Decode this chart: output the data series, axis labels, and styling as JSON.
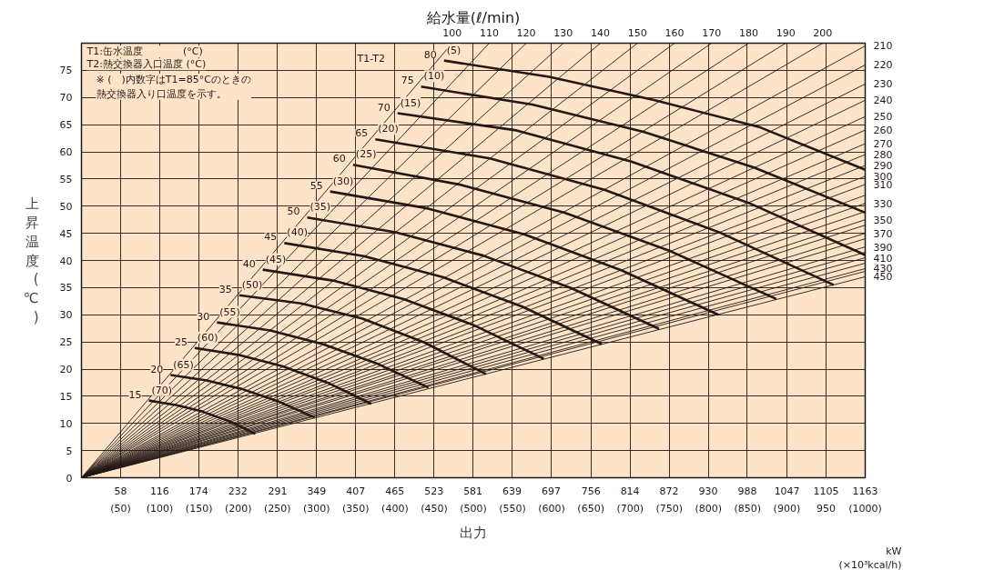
{
  "chart_data": {
    "type": "line",
    "xlabel": "出力",
    "ylabel": "上昇温度(℃)",
    "xlim": [
      0,
      1163
    ],
    "ylim": [
      0,
      80
    ],
    "xticks": [
      58,
      116,
      174,
      232,
      291,
      349,
      407,
      465,
      523,
      581,
      639,
      697,
      756,
      814,
      872,
      930,
      988,
      1047,
      1105,
      1163
    ],
    "x2lim": [
      0,
      1000
    ],
    "x2ticks": [
      {
        "value": 50,
        "label": "(50)"
      },
      {
        "value": 100,
        "label": "(100)"
      },
      {
        "value": 150,
        "label": "(150)"
      },
      {
        "value": 200,
        "label": "(200)"
      },
      {
        "value": 250,
        "label": "(250)"
      },
      {
        "value": 300,
        "label": "(300)"
      },
      {
        "value": 350,
        "label": "(350)"
      },
      {
        "value": 400,
        "label": "(400)"
      },
      {
        "value": 450,
        "label": "(450)"
      },
      {
        "value": 500,
        "label": "(500)"
      },
      {
        "value": 550,
        "label": "(550)"
      },
      {
        "value": 600,
        "label": "(600)"
      },
      {
        "value": 650,
        "label": "(650)"
      },
      {
        "value": 700,
        "label": "(700)"
      },
      {
        "value": 750,
        "label": "(750)"
      },
      {
        "value": 800,
        "label": "(800)"
      },
      {
        "value": 850,
        "label": "(850)"
      },
      {
        "value": 900,
        "label": "(900)"
      },
      950,
      {
        "value": 1000,
        "label": "(1000)"
      }
    ],
    "yticks": [
      0,
      5,
      10,
      15,
      20,
      25,
      30,
      35,
      40,
      45,
      50,
      55,
      60,
      65,
      70,
      75
    ],
    "grid": true,
    "annotations": [
      "T1:缶水温度　　　　(°C)",
      "T2:熱交換器入口温度 (°C)",
      "※ (　)内数字はT1=85°Cのときの熱交換器入り口温度を示す。",
      "給水量(ℓ/min)",
      "kW",
      "(×10³kcal/h)",
      "T1-T2",
      {
        "text": "(70)",
        "x": 100,
        "y": 14.2
      },
      {
        "text": "(65)",
        "x": 132,
        "y": 18.9
      },
      {
        "text": "(60)",
        "x": 168,
        "y": 23.9
      },
      {
        "text": "(55)",
        "x": 201,
        "y": 28.6
      },
      {
        "text": "(50)",
        "x": 234,
        "y": 33.6
      },
      {
        "text": "(45)",
        "x": 269,
        "y": 38.3
      },
      {
        "text": "(40)",
        "x": 301,
        "y": 43.2
      },
      {
        "text": "(35)",
        "x": 335,
        "y": 47.9
      },
      {
        "text": "(30)",
        "x": 369,
        "y": 52.7
      },
      {
        "text": "(25)",
        "x": 403,
        "y": 57.6
      },
      {
        "text": "(20)",
        "x": 436,
        "y": 62.3
      },
      {
        "text": "(15)",
        "x": 469,
        "y": 67.1
      },
      {
        "text": "(10)",
        "x": 504,
        "y": 72.0
      },
      {
        "text": "(5)",
        "x": 538,
        "y": 76.8
      }
    ],
    "series": [
      {
        "name": "100",
        "color": "#231815",
        "x": [
          0,
          550
        ],
        "values": [
          0,
          80
        ]
      },
      {
        "name": "110",
        "color": "#231815",
        "x": [
          0,
          605
        ],
        "values": [
          0,
          80
        ]
      },
      {
        "name": "120",
        "color": "#231815",
        "x": [
          0,
          660
        ],
        "values": [
          0,
          80
        ]
      },
      {
        "name": "130",
        "color": "#231815",
        "x": [
          0,
          715
        ],
        "values": [
          0,
          80
        ]
      },
      {
        "name": "140",
        "color": "#231815",
        "x": [
          0,
          770
        ],
        "values": [
          0,
          80
        ]
      },
      {
        "name": "150",
        "color": "#231815",
        "x": [
          0,
          825
        ],
        "values": [
          0,
          80
        ]
      },
      {
        "name": "160",
        "color": "#231815",
        "x": [
          0,
          880
        ],
        "values": [
          0,
          80
        ]
      },
      {
        "name": "170",
        "color": "#231815",
        "x": [
          0,
          935
        ],
        "values": [
          0,
          80
        ]
      },
      {
        "name": "180",
        "color": "#231815",
        "x": [
          0,
          990
        ],
        "values": [
          0,
          80
        ]
      },
      {
        "name": "190",
        "color": "#231815",
        "x": [
          0,
          1045
        ],
        "values": [
          0,
          80
        ]
      },
      {
        "name": "200",
        "color": "#231815",
        "x": [
          0,
          1100
        ],
        "values": [
          0,
          80
        ]
      },
      {
        "name": "210",
        "color": "#231815",
        "x": [
          0,
          1163
        ],
        "values": [
          0,
          79.5
        ]
      },
      {
        "name": "220",
        "color": "#231815",
        "x": [
          0,
          1163
        ],
        "values": [
          0,
          76
        ]
      },
      {
        "name": "230",
        "color": "#231815",
        "x": [
          0,
          1163
        ],
        "values": [
          0,
          72.5
        ]
      },
      {
        "name": "240",
        "color": "#231815",
        "x": [
          0,
          1163
        ],
        "values": [
          0,
          69.5
        ]
      },
      {
        "name": "250",
        "color": "#231815",
        "x": [
          0,
          1163
        ],
        "values": [
          0,
          66.5
        ]
      },
      {
        "name": "260",
        "color": "#231815",
        "x": [
          0,
          1163
        ],
        "values": [
          0,
          64
        ]
      },
      {
        "name": "270",
        "color": "#231815",
        "x": [
          0,
          1163
        ],
        "values": [
          0,
          61.5
        ]
      },
      {
        "name": "280",
        "color": "#231815",
        "x": [
          0,
          1163
        ],
        "values": [
          0,
          59.5
        ]
      },
      {
        "name": "290",
        "color": "#231815",
        "x": [
          0,
          1163
        ],
        "values": [
          0,
          57.5
        ]
      },
      {
        "name": "300",
        "color": "#231815",
        "x": [
          0,
          1163
        ],
        "values": [
          0,
          55.5
        ]
      },
      {
        "name": "310",
        "color": "#231815",
        "x": [
          0,
          1163
        ],
        "values": [
          0,
          54
        ]
      },
      {
        "color": "#231815",
        "x": [
          0,
          1163
        ],
        "values": [
          0,
          52
        ]
      },
      {
        "name": "330",
        "color": "#231815",
        "x": [
          0,
          1163
        ],
        "values": [
          0,
          50.5
        ]
      },
      {
        "color": "#231815",
        "x": [
          0,
          1163
        ],
        "values": [
          0,
          49
        ]
      },
      {
        "name": "350",
        "color": "#231815",
        "x": [
          0,
          1163
        ],
        "values": [
          0,
          47.5
        ]
      },
      {
        "color": "#231815",
        "x": [
          0,
          1163
        ],
        "values": [
          0,
          46.5
        ]
      },
      {
        "name": "370",
        "color": "#231815",
        "x": [
          0,
          1163
        ],
        "values": [
          0,
          45
        ]
      },
      {
        "color": "#231815",
        "x": [
          0,
          1163
        ],
        "values": [
          0,
          44
        ]
      },
      {
        "name": "390",
        "color": "#231815",
        "x": [
          0,
          1163
        ],
        "values": [
          0,
          42.5
        ]
      },
      {
        "color": "#231815",
        "x": [
          0,
          1163
        ],
        "values": [
          0,
          41.5
        ]
      },
      {
        "name": "410",
        "color": "#231815",
        "x": [
          0,
          1163
        ],
        "values": [
          0,
          40.5
        ]
      },
      {
        "color": "#231815",
        "x": [
          0,
          1163
        ],
        "values": [
          0,
          39.5
        ]
      },
      {
        "name": "430",
        "color": "#231815",
        "x": [
          0,
          1163
        ],
        "values": [
          0,
          38.5
        ]
      },
      {
        "color": "#231815",
        "x": [
          0,
          1163
        ],
        "values": [
          0,
          38
        ]
      },
      {
        "name": "450",
        "color": "#231815",
        "x": [
          0,
          1163
        ],
        "values": [
          0,
          37
        ]
      },
      {
        "name": "15",
        "color": "#231815",
        "x": [
          100,
          140,
          179,
          219,
          258
        ],
        "values": [
          14.2,
          13.4,
          12.2,
          10.4,
          8.1
        ]
      },
      {
        "name": "20",
        "color": "#231815",
        "x": [
          132,
          186,
          239,
          293,
          346
        ],
        "values": [
          18.9,
          17.9,
          16.3,
          14.0,
          11.1
        ]
      },
      {
        "name": "25",
        "color": "#231815",
        "x": [
          168,
          234,
          299,
          365,
          430
        ],
        "values": [
          23.9,
          22.6,
          20.5,
          17.5,
          13.6
        ]
      },
      {
        "name": "30",
        "color": "#231815",
        "x": [
          201,
          280,
          358,
          437,
          515
        ],
        "values": [
          28.6,
          27.1,
          24.6,
          21.1,
          16.6
        ]
      },
      {
        "name": "35",
        "color": "#231815",
        "x": [
          234,
          326,
          417,
          509,
          600
        ],
        "values": [
          33.6,
          32.1,
          29.3,
          24.9,
          19.1
        ]
      },
      {
        "name": "40",
        "color": "#231815",
        "x": [
          269,
          373,
          478,
          582,
          686
        ],
        "values": [
          38.3,
          36.3,
          32.9,
          28.1,
          21.9
        ]
      },
      {
        "name": "45",
        "color": "#231815",
        "x": [
          301,
          419,
          537,
          654,
          772
        ],
        "values": [
          43.2,
          40.8,
          36.9,
          31.5,
          24.6
        ]
      },
      {
        "name": "50",
        "color": "#231815",
        "x": [
          335,
          466,
          596,
          727,
          857
        ],
        "values": [
          47.9,
          45.2,
          40.9,
          34.9,
          27.4
        ]
      },
      {
        "name": "55",
        "color": "#231815",
        "x": [
          369,
          513,
          657,
          801,
          945
        ],
        "values": [
          52.7,
          49.6,
          44.8,
          38.2,
          30.0
        ]
      },
      {
        "name": "60",
        "color": "#231815",
        "x": [
          403,
          560,
          717,
          874,
          1031
        ],
        "values": [
          57.6,
          54.0,
          48.8,
          41.7,
          32.9
        ]
      },
      {
        "name": "65",
        "color": "#231815",
        "x": [
          436,
          606,
          776,
          946,
          1116
        ],
        "values": [
          62.3,
          58.8,
          53.0,
          45.2,
          35.5
        ]
      },
      {
        "name": "70",
        "color": "#231815",
        "x": [
          469,
          643,
          816,
          990,
          1163
        ],
        "values": [
          67.1,
          64.0,
          58.2,
          50.6,
          41.0
        ]
      },
      {
        "name": "75",
        "color": "#231815",
        "x": [
          504,
          669,
          834,
          998,
          1163
        ],
        "values": [
          72.0,
          68.7,
          63.7,
          57.1,
          48.8
        ]
      },
      {
        "name": "80",
        "color": "#231815",
        "x": [
          538,
          694,
          851,
          1007,
          1163
        ],
        "values": [
          76.8,
          73.8,
          69.5,
          64.5,
          56.7
        ]
      }
    ]
  }
}
